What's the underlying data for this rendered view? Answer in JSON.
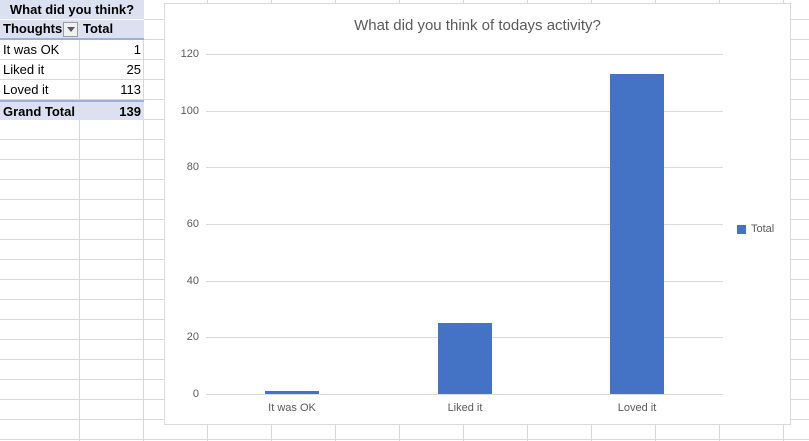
{
  "pivot": {
    "title": "What did you think?",
    "columns": {
      "row_label": "Thoughts",
      "value_label": "Total"
    },
    "rows": [
      {
        "label": "It was OK",
        "value": "1"
      },
      {
        "label": "Liked it",
        "value": "25"
      },
      {
        "label": "Loved it",
        "value": "113"
      }
    ],
    "grand_total": {
      "label": "Grand Total",
      "value": "139"
    },
    "filter_icon": "dropdown-arrow-icon"
  },
  "chart_data": {
    "type": "bar",
    "title": "What did you think of todays activity?",
    "categories": [
      "It was OK",
      "Liked it",
      "Loved it"
    ],
    "series": [
      {
        "name": "Total",
        "values": [
          1,
          25,
          113
        ]
      }
    ],
    "xlabel": "",
    "ylabel": "",
    "ylim": [
      0,
      120
    ],
    "yticks": [
      0,
      20,
      40,
      60,
      80,
      100,
      120
    ],
    "grid": true,
    "legend_position": "right",
    "bar_color": "#4472C4"
  },
  "colors": {
    "bar": "#4472C4",
    "pivot_header_bg": "#DCE1F2",
    "pivot_border": "#9FAEDB",
    "chart_text": "#595959",
    "gridline": "#D9D9D9",
    "sheet_gridline": "#D8D8D8"
  }
}
